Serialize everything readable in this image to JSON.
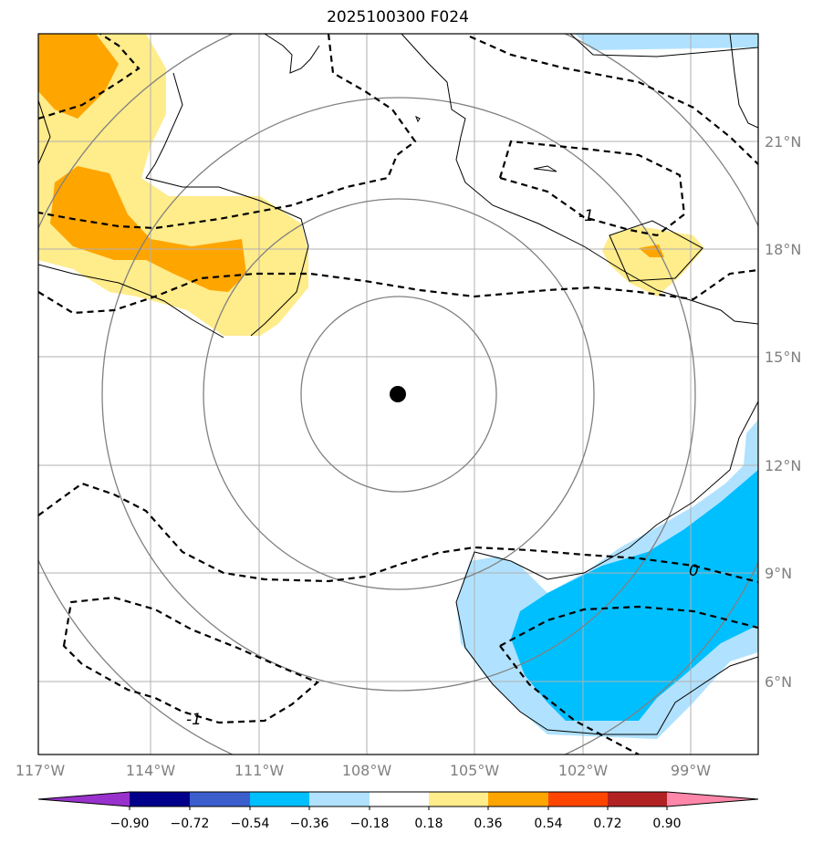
{
  "title": "2025100300 F024",
  "lon_labels": [
    "117°W",
    "114°W",
    "111°W",
    "108°W",
    "105°W",
    "102°W",
    "99°W"
  ],
  "lat_labels": [
    "21°N",
    "18°N",
    "15°N",
    "12°N",
    "9°N",
    "6°N"
  ],
  "contour_labels": [
    "-1",
    "0",
    "-1"
  ],
  "colorbar": {
    "ticks": [
      "−0.90",
      "−0.72",
      "−0.54",
      "−0.36",
      "−0.18",
      "0.18",
      "0.36",
      "0.54",
      "0.72",
      "0.90"
    ],
    "colors": [
      "#9932cc",
      "#00008b",
      "#3a5fcd",
      "#00bfff",
      "#b0e2ff",
      "#ffffff",
      "#ffec8b",
      "#ffa500",
      "#ff4500",
      "#b22222",
      "#ff88aa"
    ]
  },
  "center_marker": {
    "lon": -107.1,
    "lat": 14.0
  }
}
